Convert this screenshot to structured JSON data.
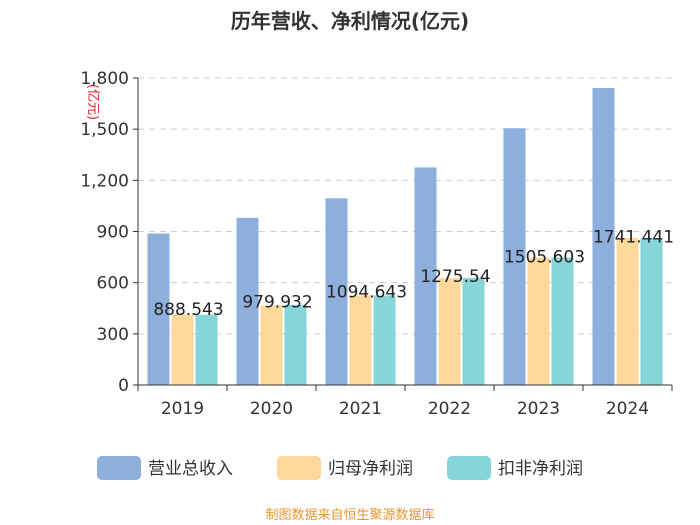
{
  "chart_data": {
    "type": "bar",
    "title": "历年营收、净利情况(亿元)",
    "ylabel": "(亿元)",
    "xlabel": "",
    "categories": [
      "2019",
      "2020",
      "2021",
      "2022",
      "2023",
      "2024"
    ],
    "ylim": [
      0,
      1800
    ],
    "yticks": [
      0,
      300,
      600,
      900,
      1200,
      1500,
      1800
    ],
    "ytick_labels": [
      "0",
      "300",
      "600",
      "900",
      "1,200",
      "1,500",
      "1,800"
    ],
    "grid": true,
    "legend_position": "bottom",
    "series": [
      {
        "name": "营业总收入",
        "color": "#8eaedc",
        "values": [
          888.543,
          979.932,
          1094.643,
          1275.54,
          1505.603,
          1741.441
        ],
        "labels": [
          "888.543",
          "979.932",
          "1094.643",
          "1275.54",
          "1505.603",
          "1741.441"
        ]
      },
      {
        "name": "归母净利润",
        "color": "#fdd89a",
        "values": [
          413,
          467,
          525,
          627,
          747,
          862
        ]
      },
      {
        "name": "扣非净利润",
        "color": "#86d5d9",
        "values": [
          412,
          470,
          525,
          628,
          747,
          860
        ]
      }
    ]
  },
  "footer": {
    "source": "制图数据来自恒生聚源数据库"
  }
}
